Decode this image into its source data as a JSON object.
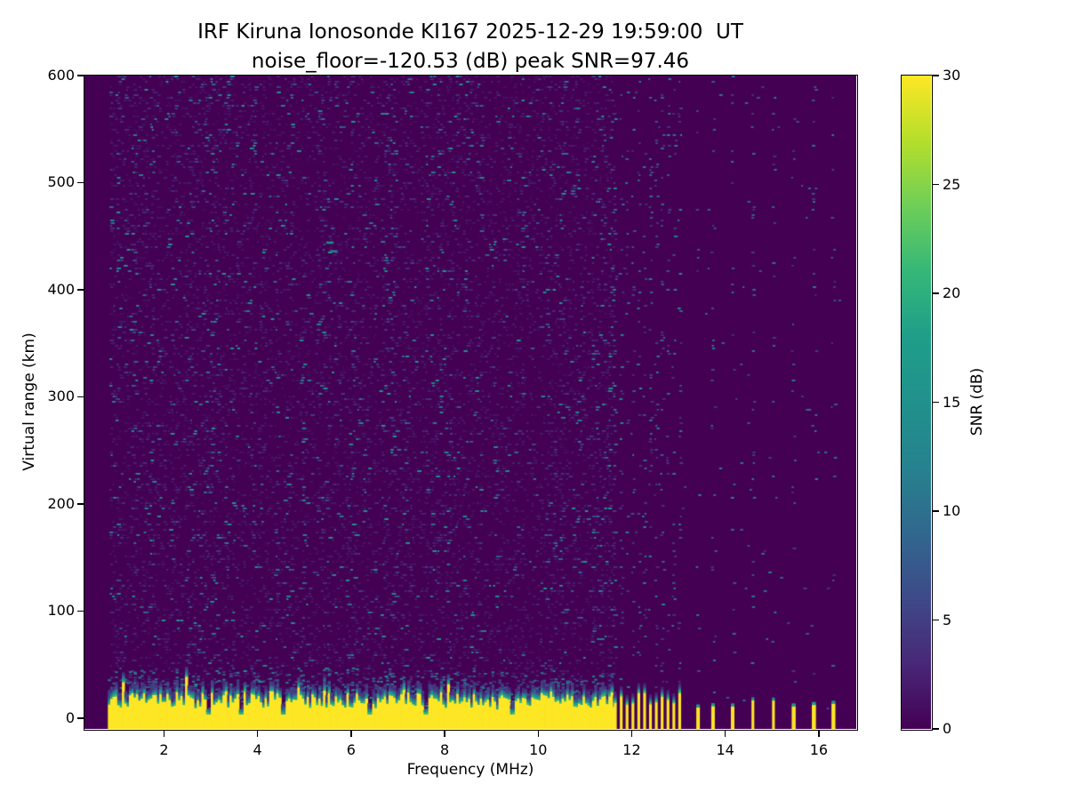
{
  "figure": {
    "title_line1": "IRF Kiruna Ionosonde KI167 2025-12-29 19:59:00  UT",
    "title_line2": "noise_floor=-120.53 (dB) peak SNR=97.46",
    "background": "#ffffff",
    "text_color": "#000000"
  },
  "chart_data": {
    "type": "heatmap",
    "station": "IRF Kiruna",
    "instrument": "Ionosonde KI167",
    "timestamp_ut": "2025-12-29 19:59:00",
    "noise_floor_db": -120.53,
    "peak_snr_db": 97.46,
    "xlabel": "Frequency (MHz)",
    "ylabel": "Virtual range (km)",
    "xlim": [
      0.3,
      16.8
    ],
    "ylim": [
      -10,
      600
    ],
    "xticks": [
      2,
      4,
      6,
      8,
      10,
      12,
      14,
      16
    ],
    "yticks": [
      0,
      100,
      200,
      300,
      400,
      500,
      600
    ],
    "grid": false,
    "colorbar": {
      "label": "SNR (dB)",
      "min": 0,
      "max": 30,
      "ticks": [
        0,
        5,
        10,
        15,
        20,
        25,
        30
      ],
      "position": "right"
    },
    "colormap": {
      "name": "viridis",
      "stops": [
        [
          0.0,
          "#440154"
        ],
        [
          0.1,
          "#482878"
        ],
        [
          0.2,
          "#3e4a89"
        ],
        [
          0.3,
          "#31688e"
        ],
        [
          0.4,
          "#26828e"
        ],
        [
          0.5,
          "#21918c"
        ],
        [
          0.6,
          "#1f9e89"
        ],
        [
          0.7,
          "#35b779"
        ],
        [
          0.8,
          "#6ece58"
        ],
        [
          0.9,
          "#b5de2b"
        ],
        [
          1.0,
          "#fde725"
        ]
      ]
    },
    "content": {
      "seed": 167,
      "freq_start": 0.85,
      "band_start": 0.8,
      "continuous_end": 11.62,
      "freq_end": 16.5,
      "speckle_density": 0.04,
      "band_top_mean_km": 27,
      "band_top_jitter_km": 7,
      "notches_mhz": [
        2.9,
        3.62,
        4.5,
        6.35,
        7.55,
        9.4
      ],
      "barcode": {
        "start": 11.62,
        "end": 13.12,
        "step": 0.125,
        "bar_width_mhz": 0.06
      },
      "sparse_bars_mhz": [
        13.38,
        13.7,
        14.12,
        14.56,
        15.0,
        15.42,
        15.85,
        16.27
      ],
      "echo_spots": [
        {
          "freq_mhz": 5.55,
          "range_km": 445,
          "snr_db": 15
        },
        {
          "freq_mhz": 5.63,
          "range_km": 437,
          "snr_db": 12
        }
      ]
    }
  }
}
